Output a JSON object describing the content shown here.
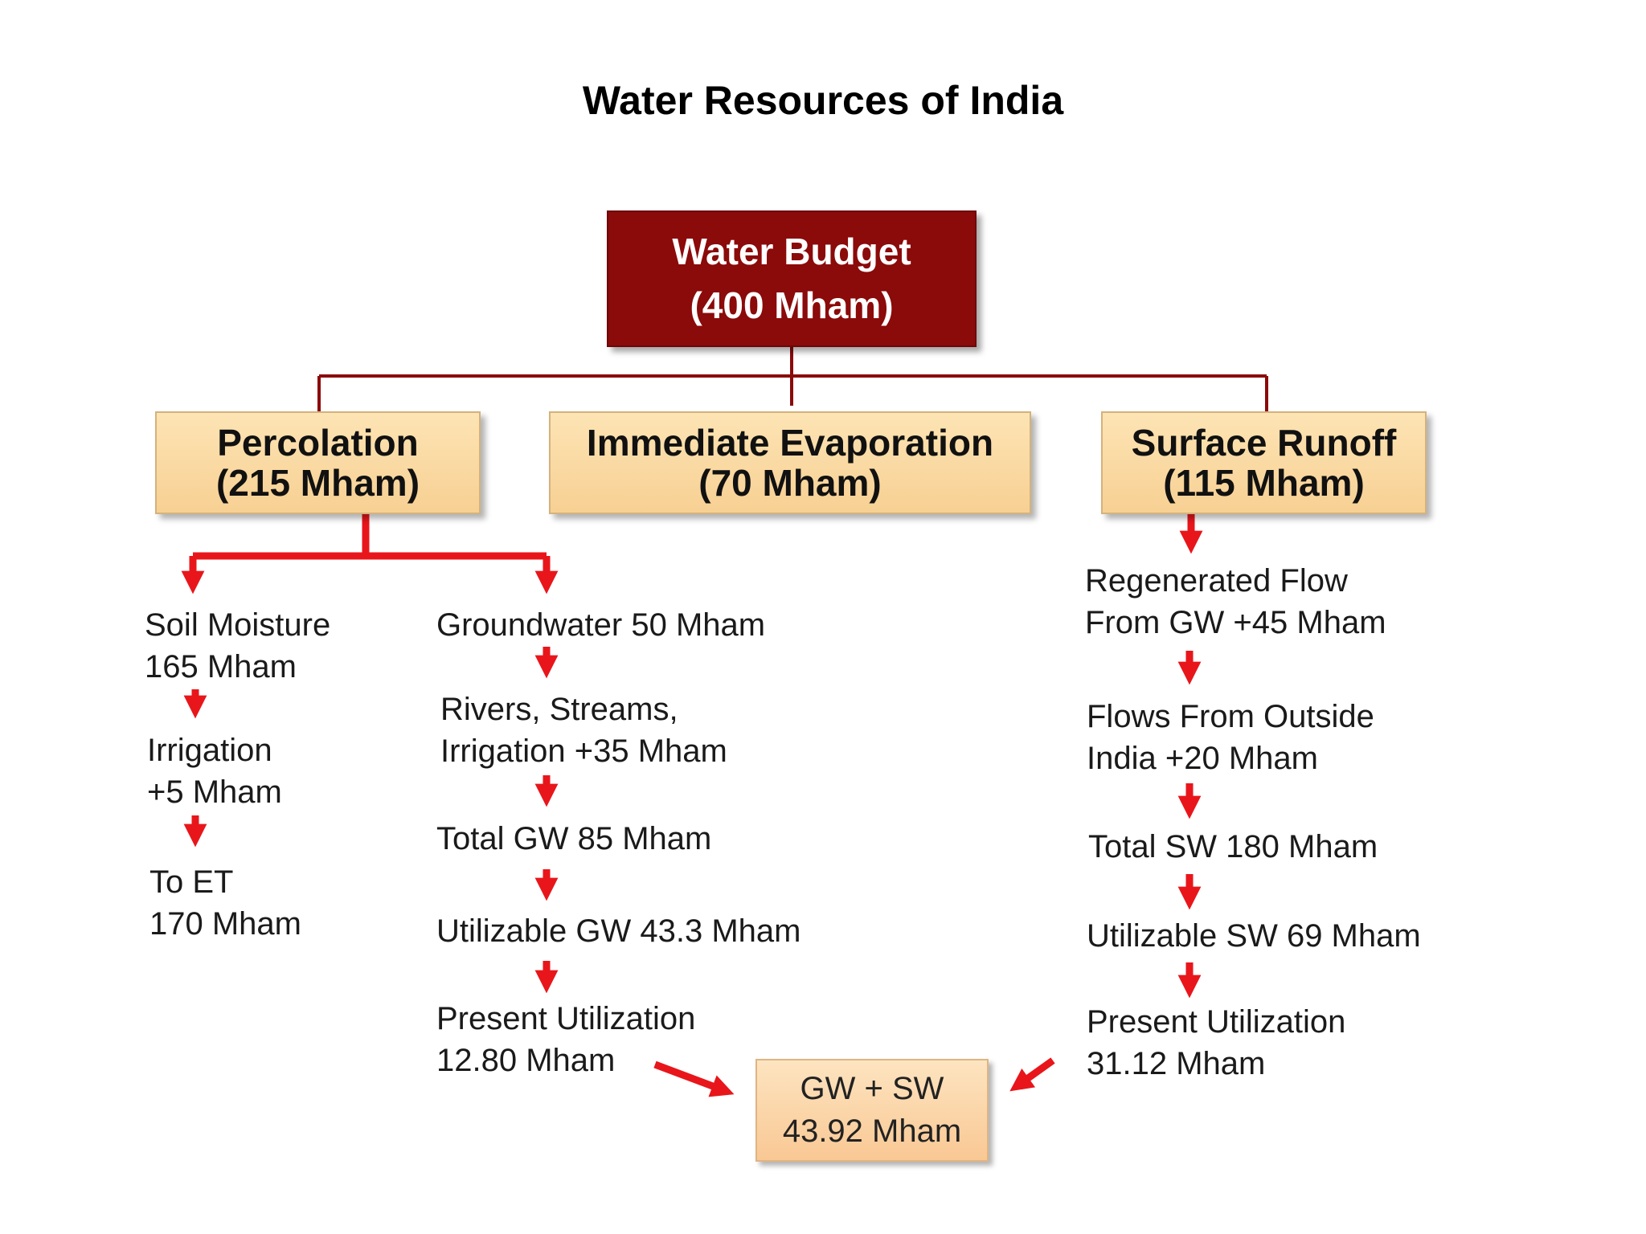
{
  "title": "Water Resources of India",
  "root": {
    "line1": "Water Budget",
    "line2": "(400 Mham)"
  },
  "level1": {
    "percolation": {
      "line1": "Percolation",
      "line2": "(215 Mham)"
    },
    "evaporation": {
      "line1": "Immediate Evaporation",
      "line2": "(70 Mham)"
    },
    "runoff": {
      "line1": "Surface Runoff",
      "line2": "(115 Mham)"
    }
  },
  "soil_chain": [
    {
      "line1": "Soil Moisture",
      "line2": "165 Mham"
    },
    {
      "line1": "Irrigation",
      "line2": "+5 Mham"
    },
    {
      "line1": "To ET",
      "line2": "170 Mham"
    }
  ],
  "gw_chain": [
    {
      "line1": "Groundwater 50 Mham"
    },
    {
      "line1": "Rivers, Streams,",
      "line2": "Irrigation +35 Mham"
    },
    {
      "line1": "Total GW 85 Mham"
    },
    {
      "line1": "Utilizable GW 43.3 Mham"
    },
    {
      "line1": "Present Utilization",
      "line2": "12.80 Mham"
    }
  ],
  "sw_chain": [
    {
      "line1": "Regenerated Flow",
      "line2": "From GW +45 Mham"
    },
    {
      "line1": "Flows From Outside",
      "line2": "India +20 Mham"
    },
    {
      "line1": "Total SW 180 Mham"
    },
    {
      "line1": "Utilizable SW 69 Mham"
    },
    {
      "line1": "Present Utilization",
      "line2": "31.12 Mham"
    }
  ],
  "final": {
    "line1": "GW + SW",
    "line2": "43.92 Mham"
  },
  "colors": {
    "dark_connector": "#8b0a0a",
    "arrow": "#e8161b",
    "root_fill": "#8b0a0a",
    "box_fill": "#fbd9a3"
  }
}
